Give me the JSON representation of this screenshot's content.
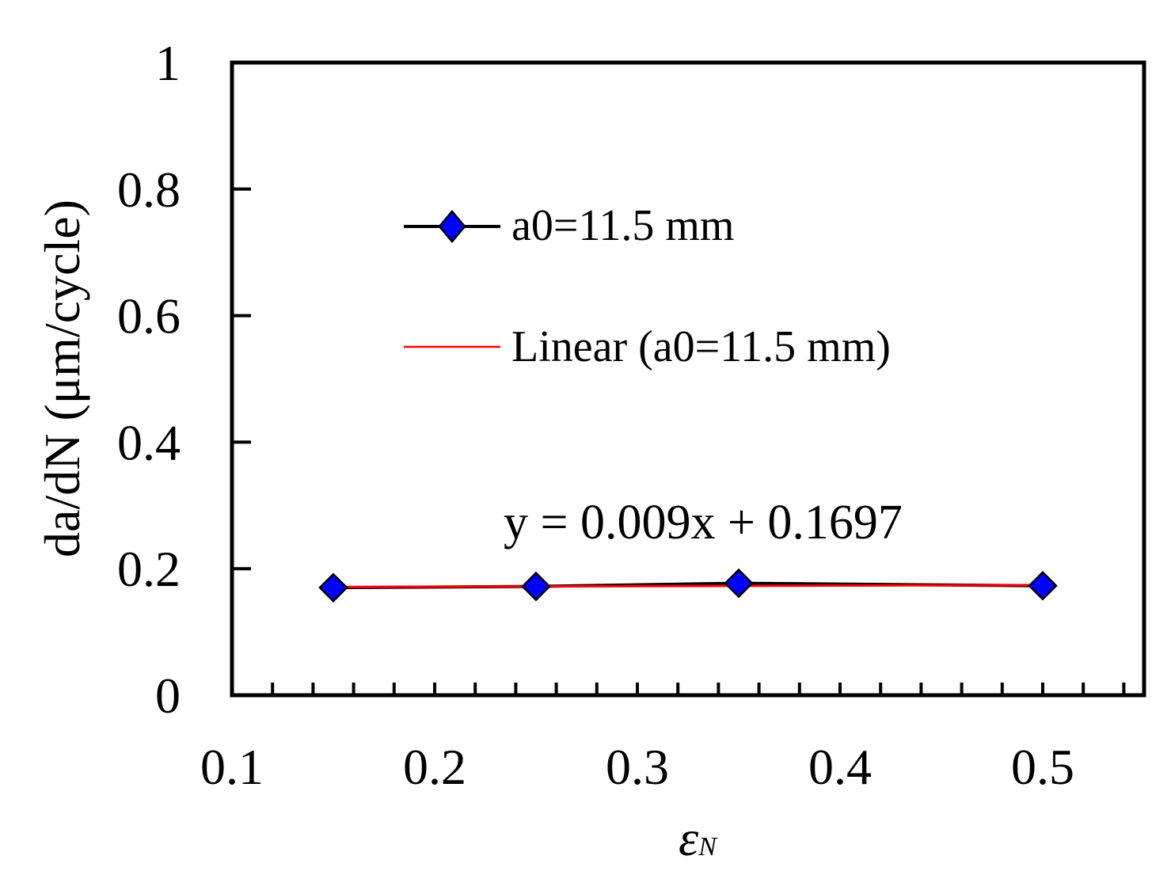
{
  "chart_data": {
    "type": "line",
    "xlabel": "ε",
    "xlabel_sub": "N",
    "ylabel": "da/dN (μm/cycle)",
    "xlim": [
      0.1,
      0.55
    ],
    "ylim": [
      0,
      1
    ],
    "x_ticks": [
      0.1,
      0.2,
      0.3,
      0.4,
      0.5
    ],
    "x_tick_labels": [
      "0.1",
      "0.2",
      "0.3",
      "0.4",
      "0.5"
    ],
    "x_minor_step": 0.02,
    "y_ticks": [
      0,
      0.2,
      0.4,
      0.6,
      0.8,
      1
    ],
    "y_tick_labels": [
      "0",
      "0.2",
      "0.4",
      "0.6",
      "0.8",
      "1"
    ],
    "grid": false,
    "legend_position": "top-center",
    "series": [
      {
        "name": "a0=11.5 mm",
        "type": "line-marker",
        "marker": "diamond",
        "line_color": "#000000",
        "marker_color": "#0000ff",
        "x": [
          0.15,
          0.25,
          0.35,
          0.5
        ],
        "y": [
          0.17,
          0.172,
          0.177,
          0.173
        ]
      },
      {
        "name": "Linear (a0=11.5 mm)",
        "type": "trendline",
        "line_color": "#ff0000",
        "slope": 0.009,
        "intercept": 0.1697,
        "x_range": [
          0.15,
          0.5
        ]
      }
    ],
    "annotation": "y = 0.009x + 0.1697"
  }
}
